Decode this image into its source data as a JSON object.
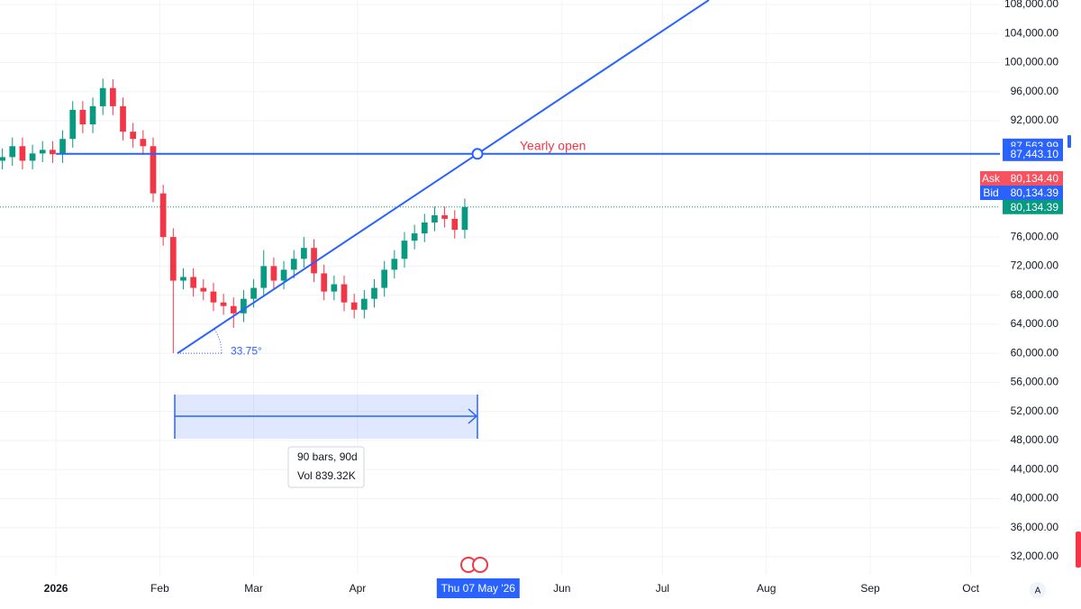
{
  "chart_data": {
    "type": "candlestick",
    "x": [
      -16,
      -13,
      -10,
      -7,
      -4,
      -1,
      2,
      5,
      8,
      11,
      14,
      17,
      20,
      23,
      26,
      29,
      32,
      35,
      38,
      41,
      44,
      47,
      50,
      53,
      56,
      59,
      62,
      65,
      68,
      71,
      74,
      77,
      80,
      83,
      86,
      89,
      92,
      95,
      98,
      101,
      104,
      107,
      110,
      113,
      116,
      119,
      122
    ],
    "open": [
      86500,
      87000,
      88500,
      86500,
      87500,
      88000,
      87400,
      89500,
      93500,
      91500,
      94000,
      96500,
      94000,
      90500,
      89500,
      88500,
      82000,
      76000,
      70000,
      70500,
      69000,
      68500,
      67000,
      66500,
      65500,
      67500,
      69000,
      72000,
      70000,
      71500,
      73000,
      74500,
      71000,
      68500,
      69500,
      67000,
      66000,
      67500,
      69000,
      71500,
      73000,
      75500,
      76500,
      78000,
      79000,
      78500,
      77000
    ],
    "high": [
      88200,
      89700,
      89700,
      88700,
      89200,
      89200,
      90700,
      94700,
      94700,
      95200,
      97800,
      97700,
      95200,
      91700,
      90700,
      89700,
      83200,
      77200,
      71700,
      71700,
      70200,
      69700,
      68200,
      67700,
      68700,
      70200,
      74200,
      73200,
      72700,
      74200,
      76000,
      75700,
      72200,
      70700,
      70700,
      68200,
      68700,
      70200,
      72700,
      74200,
      76700,
      77700,
      79200,
      80200,
      80200,
      79700,
      81300
    ],
    "low": [
      85300,
      85800,
      85300,
      85300,
      86300,
      86200,
      86200,
      88300,
      90300,
      90300,
      92800,
      92800,
      89300,
      88300,
      87300,
      80800,
      74800,
      60000,
      68800,
      67800,
      67300,
      65800,
      65300,
      63500,
      64300,
      66300,
      67800,
      68800,
      68800,
      70300,
      71800,
      69800,
      67300,
      67300,
      65800,
      64800,
      64800,
      66300,
      67800,
      70300,
      71800,
      74300,
      75300,
      76800,
      77300,
      75800,
      75800
    ],
    "close": [
      87000,
      88500,
      86500,
      87500,
      88000,
      87400,
      89500,
      93500,
      91500,
      94000,
      96500,
      94000,
      90500,
      89500,
      88500,
      82000,
      76000,
      70000,
      70500,
      69000,
      68500,
      67000,
      66500,
      65500,
      67500,
      69000,
      72000,
      70000,
      71500,
      73000,
      74500,
      71000,
      68500,
      69500,
      67000,
      66000,
      67500,
      69000,
      71500,
      73000,
      75500,
      76500,
      78000,
      79000,
      78500,
      77000,
      80134.39
    ],
    "up_color": "#089981",
    "down_color": "#f23645",
    "xlim": [
      -16.7,
      281.7
    ],
    "xticks": [
      {
        "value": 0,
        "label": "2026"
      },
      {
        "value": 31,
        "label": "Feb"
      },
      {
        "value": 59,
        "label": "Mar"
      },
      {
        "value": 90,
        "label": "Apr"
      },
      {
        "value": 151,
        "label": "Jun"
      },
      {
        "value": 181,
        "label": "Jul"
      },
      {
        "value": 212,
        "label": "Aug"
      },
      {
        "value": 243,
        "label": "Sep"
      },
      {
        "value": 273,
        "label": "Oct"
      }
    ],
    "crosshair_x": {
      "value": 126,
      "label": "Thu 07 May '26"
    },
    "ylim": [
      32000,
      108000
    ],
    "yticks": [
      {
        "value": 32000,
        "label": "32,000.00"
      },
      {
        "value": 36000,
        "label": "36,000.00"
      },
      {
        "value": 40000,
        "label": "40,000.00"
      },
      {
        "value": 44000,
        "label": "44,000.00"
      },
      {
        "value": 48000,
        "label": "48,000.00"
      },
      {
        "value": 52000,
        "label": "52,000.00"
      },
      {
        "value": 56000,
        "label": "56,000.00"
      },
      {
        "value": 60000,
        "label": "60,000.00"
      },
      {
        "value": 64000,
        "label": "64,000.00"
      },
      {
        "value": 68000,
        "label": "68,000.00"
      },
      {
        "value": 72000,
        "label": "72,000.00"
      },
      {
        "value": 76000,
        "label": "76,000.00"
      },
      {
        "value": 92000,
        "label": "92,000.00"
      },
      {
        "value": 96000,
        "label": "96,000.00"
      },
      {
        "value": 100000,
        "label": "100,000.00"
      },
      {
        "value": 104000,
        "label": "104,000.00"
      },
      {
        "value": 108000,
        "label": "108,000.00"
      }
    ],
    "grid": true,
    "yearly_open": {
      "value": 87443.1,
      "label": "87,443.10",
      "text": "Yearly open"
    },
    "crosshair_price": {
      "value": 87563.99,
      "label": "87,563.99"
    },
    "ask": {
      "name": "Ask",
      "value": 80134.4,
      "label": "80,134.40"
    },
    "bid": {
      "name": "Bid",
      "value": 80134.39,
      "label": "80,134.39"
    },
    "last": {
      "value": 80134.39,
      "label": "80,134.39"
    },
    "angle_label": "33.75°",
    "range_info": [
      "90 bars, 90d",
      "Vol 839.32K"
    ],
    "scale_mode": "A"
  }
}
